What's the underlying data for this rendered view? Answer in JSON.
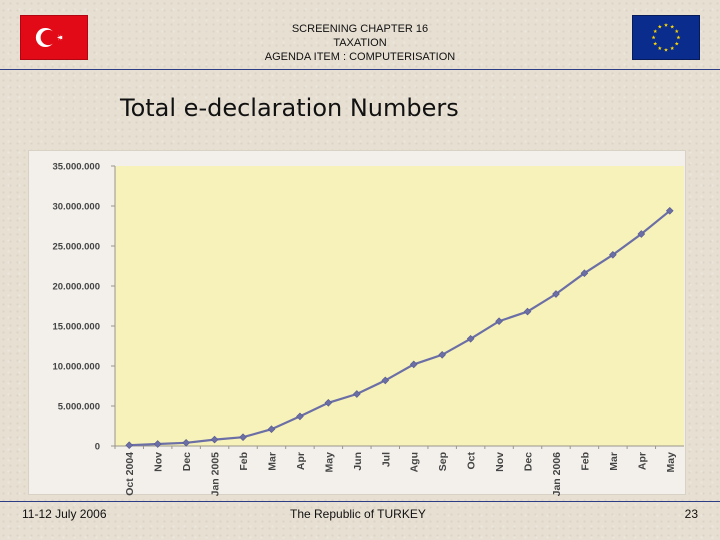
{
  "header": {
    "line1": "SCREENING CHAPTER 16",
    "line2": "TAXATION",
    "line3": "AGENDA ITEM :  COMPUTERISATION"
  },
  "title": "Total e-declaration Numbers",
  "flags": {
    "left": "turkey-flag",
    "right": "eu-flag",
    "turkey_red": "#e30a17",
    "eu_blue": "#0a2c8c",
    "eu_star": "#ffd700"
  },
  "chart_data": {
    "type": "line",
    "title": "Total e-declaration Numbers",
    "xlabel": "",
    "ylabel": "",
    "ylim": [
      0,
      35000000
    ],
    "yticks": [
      "0",
      "5.000.000",
      "10.000.000",
      "15.000.000",
      "20.000.000",
      "25.000.000",
      "30.000.000",
      "35.000.000"
    ],
    "categories": [
      "Oct 2004",
      "Nov",
      "Dec",
      "Jan 2005",
      "Feb",
      "Mar",
      "Apr",
      "May",
      "Jun",
      "Jul",
      "Agu",
      "Sep",
      "Oct",
      "Nov",
      "Dec",
      "Jan 2006",
      "Feb",
      "Mar",
      "Apr",
      "May"
    ],
    "series": [
      {
        "values": [
          100000,
          250000,
          400000,
          800000,
          1100000,
          2100000,
          3700000,
          5400000,
          6500000,
          8200000,
          10200000,
          11400000,
          13400000,
          15600000,
          16800000,
          19000000,
          21600000,
          23900000,
          26500000,
          29400000
        ],
        "color": "#6b6fa6"
      }
    ],
    "grid": false,
    "plot_background": "#f7f2b9",
    "legend": "none"
  },
  "footer": {
    "date": "11-12 July 2006",
    "center": "The Republic of TURKEY",
    "page": "23"
  }
}
